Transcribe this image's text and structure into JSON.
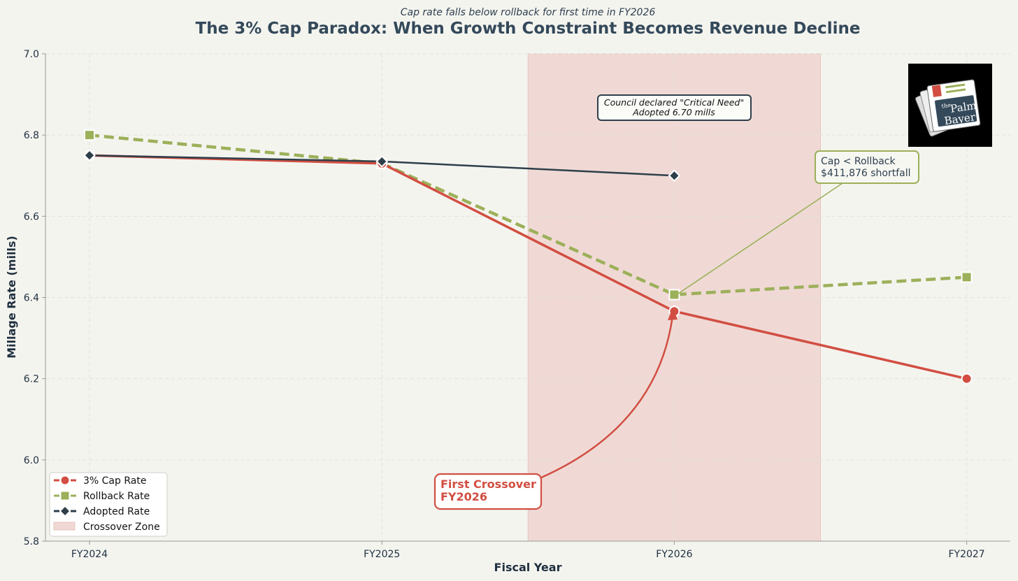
{
  "chart_data": {
    "type": "line",
    "subtitle": "Cap rate falls below rollback for first time in FY2026",
    "title": "The 3% Cap Paradox: When Growth Constraint Becomes Revenue Decline",
    "xlabel": "Fiscal Year",
    "ylabel": "Millage Rate (mills)",
    "categories": [
      "FY2024",
      "FY2025",
      "FY2026",
      "FY2027"
    ],
    "ylim": [
      5.8,
      7.0
    ],
    "yticks": [
      "5.8",
      "6.0",
      "6.2",
      "6.4",
      "6.6",
      "6.8",
      "7.0"
    ],
    "grid": true,
    "legend_position": "bottom-left",
    "series": [
      {
        "name": "3% Cap Rate",
        "values": [
          6.75,
          6.73,
          6.366,
          6.2
        ],
        "color": "#d24e42",
        "style": "solid",
        "marker": "circle"
      },
      {
        "name": "Rollback Rate",
        "values": [
          6.8,
          6.73,
          6.407,
          6.45
        ],
        "color": "#9cb05a",
        "style": "dashed",
        "marker": "square"
      },
      {
        "name": "Adopted Rate",
        "values": [
          6.75,
          6.735,
          6.7,
          null
        ],
        "color": "#2f3f4a",
        "style": "solid",
        "marker": "diamond"
      }
    ],
    "shaded_region": {
      "name": "Crossover Zone",
      "x_from": 1.5,
      "x_to": 2.5,
      "color": "#f0d9d5"
    },
    "annotations": [
      {
        "lines": [
          "Council declared \"Critical Need\"",
          "Adopted 6.70 mills"
        ]
      },
      {
        "lines": [
          "Cap < Rollback",
          "$411,876 shortfall"
        ]
      },
      {
        "lines": [
          "First Crossover",
          "FY2026"
        ]
      }
    ],
    "logo": {
      "lines": [
        "the",
        "Palm",
        "Bayer"
      ],
      "icon": "newspaper-icon"
    }
  }
}
